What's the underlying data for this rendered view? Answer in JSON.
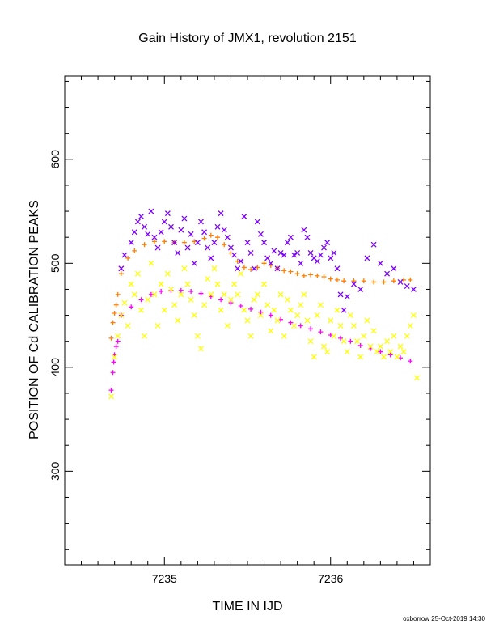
{
  "chart_data": {
    "type": "scatter",
    "title": "Gain History of JMX1, revolution 2151",
    "xlabel": "TIME IN IJD",
    "ylabel": "POSITION OF Cd CALIBRATION PEAKS",
    "xlim": [
      7234.4,
      7236.6
    ],
    "ylim": [
      210,
      680
    ],
    "x_ticks": [
      7235,
      7236
    ],
    "y_ticks": [
      300,
      400,
      500,
      600
    ],
    "x_tick_labels": [
      "7235",
      "7236"
    ],
    "y_tick_labels": [
      "300",
      "400",
      "500",
      "600"
    ],
    "grid": false,
    "legend": "none",
    "footer": "oxborrow 25-Oct-2019 14:30",
    "series": [
      {
        "marker": "+",
        "color": "#ff00ff",
        "x": [
          7234.68,
          7234.69,
          7234.695,
          7234.7,
          7234.71,
          7234.72,
          7234.74,
          7234.8,
          7234.86,
          7234.92,
          7234.98,
          7235.04,
          7235.1,
          7235.16,
          7235.22,
          7235.28,
          7235.34,
          7235.4,
          7235.46,
          7235.52,
          7235.58,
          7235.64,
          7235.7,
          7235.76,
          7235.82,
          7235.88,
          7235.94,
          7236.0,
          7236.06,
          7236.12,
          7236.18,
          7236.24,
          7236.3,
          7236.36,
          7236.42,
          7236.48
        ],
        "y": [
          378,
          395,
          405,
          412,
          420,
          425,
          450,
          458,
          465,
          470,
          473,
          474,
          474,
          473,
          471,
          468,
          465,
          462,
          459,
          456,
          453,
          450,
          446,
          443,
          440,
          437,
          434,
          431,
          428,
          425,
          421,
          418,
          415,
          412,
          409,
          406
        ]
      },
      {
        "marker": "+",
        "color": "#ff7f00",
        "x": [
          7234.68,
          7234.69,
          7234.7,
          7234.71,
          7234.72,
          7234.74,
          7234.78,
          7234.82,
          7234.88,
          7234.94,
          7235.0,
          7235.06,
          7235.12,
          7235.18,
          7235.24,
          7235.28,
          7235.32,
          7235.36,
          7235.4,
          7235.44,
          7235.48,
          7235.52,
          7235.56,
          7235.6,
          7235.64,
          7235.68,
          7235.72,
          7235.76,
          7235.8,
          7235.84,
          7235.88,
          7235.92,
          7235.96,
          7236.0,
          7236.04,
          7236.08,
          7236.14,
          7236.2,
          7236.26,
          7236.32,
          7236.38,
          7236.44,
          7236.48
        ],
        "y": [
          428,
          443,
          452,
          460,
          470,
          490,
          505,
          512,
          518,
          521,
          521,
          520,
          520,
          521,
          524,
          527,
          525,
          518,
          510,
          502,
          496,
          494,
          496,
          500,
          498,
          495,
          493,
          492,
          490,
          488,
          489,
          488,
          487,
          485,
          484,
          483,
          483,
          483,
          482,
          482,
          483,
          484,
          484
        ]
      },
      {
        "marker": "x",
        "color": "#7f00ff",
        "x": [
          7234.74,
          7234.76,
          7234.8,
          7234.82,
          7234.84,
          7234.86,
          7234.88,
          7234.9,
          7234.92,
          7234.94,
          7234.96,
          7234.98,
          7235.0,
          7235.02,
          7235.04,
          7235.06,
          7235.08,
          7235.1,
          7235.12,
          7235.14,
          7235.16,
          7235.18,
          7235.2,
          7235.22,
          7235.24,
          7235.26,
          7235.28,
          7235.3,
          7235.32,
          7235.34,
          7235.36,
          7235.38,
          7235.4,
          7235.42,
          7235.44,
          7235.46,
          7235.48,
          7235.5,
          7235.52,
          7235.54,
          7235.56,
          7235.58,
          7235.6,
          7235.62,
          7235.64,
          7235.66,
          7235.68,
          7235.7,
          7235.72,
          7235.74,
          7235.76,
          7235.78,
          7235.8,
          7235.82,
          7235.84,
          7235.86,
          7235.88,
          7235.9,
          7235.92,
          7235.94,
          7235.96,
          7235.98,
          7236.0,
          7236.02,
          7236.04,
          7236.06,
          7236.08,
          7236.1,
          7236.14,
          7236.18,
          7236.22,
          7236.26,
          7236.3,
          7236.34,
          7236.38,
          7236.42,
          7236.46,
          7236.5
        ],
        "y": [
          495,
          508,
          520,
          530,
          540,
          545,
          535,
          528,
          550,
          525,
          515,
          530,
          540,
          548,
          535,
          520,
          510,
          532,
          543,
          515,
          528,
          500,
          520,
          540,
          530,
          515,
          505,
          520,
          535,
          548,
          532,
          525,
          515,
          508,
          495,
          502,
          545,
          520,
          510,
          495,
          540,
          528,
          520,
          505,
          500,
          512,
          495,
          510,
          508,
          520,
          525,
          508,
          510,
          500,
          532,
          525,
          510,
          505,
          502,
          508,
          515,
          520,
          505,
          510,
          495,
          470,
          455,
          468,
          480,
          475,
          505,
          518,
          500,
          490,
          495,
          482,
          478,
          475
        ]
      },
      {
        "marker": "x",
        "color": "#ffff00",
        "x": [
          7234.68,
          7234.7,
          7234.72,
          7234.74,
          7234.76,
          7234.78,
          7234.8,
          7234.82,
          7234.84,
          7234.86,
          7234.88,
          7234.9,
          7234.92,
          7234.94,
          7234.96,
          7234.98,
          7235.0,
          7235.02,
          7235.04,
          7235.06,
          7235.08,
          7235.1,
          7235.12,
          7235.14,
          7235.16,
          7235.18,
          7235.2,
          7235.22,
          7235.24,
          7235.26,
          7235.28,
          7235.3,
          7235.32,
          7235.34,
          7235.36,
          7235.38,
          7235.4,
          7235.42,
          7235.44,
          7235.46,
          7235.48,
          7235.5,
          7235.52,
          7235.54,
          7235.56,
          7235.58,
          7235.6,
          7235.62,
          7235.64,
          7235.66,
          7235.68,
          7235.7,
          7235.72,
          7235.74,
          7235.76,
          7235.78,
          7235.8,
          7235.82,
          7235.84,
          7235.86,
          7235.88,
          7235.9,
          7235.92,
          7235.94,
          7235.96,
          7235.98,
          7236.0,
          7236.02,
          7236.04,
          7236.06,
          7236.08,
          7236.1,
          7236.12,
          7236.14,
          7236.16,
          7236.18,
          7236.2,
          7236.22,
          7236.24,
          7236.26,
          7236.28,
          7236.3,
          7236.32,
          7236.34,
          7236.36,
          7236.38,
          7236.4,
          7236.42,
          7236.44,
          7236.46,
          7236.48,
          7236.5,
          7236.52
        ],
        "y": [
          372,
          410,
          430,
          450,
          462,
          440,
          480,
          470,
          490,
          455,
          430,
          465,
          500,
          470,
          440,
          480,
          455,
          490,
          475,
          460,
          445,
          470,
          495,
          480,
          465,
          450,
          430,
          418,
          460,
          485,
          470,
          495,
          480,
          455,
          470,
          440,
          465,
          480,
          470,
          490,
          455,
          445,
          430,
          465,
          470,
          450,
          480,
          460,
          435,
          455,
          445,
          470,
          430,
          465,
          455,
          440,
          450,
          460,
          470,
          445,
          425,
          410,
          450,
          460,
          420,
          415,
          445,
          430,
          455,
          440,
          425,
          415,
          450,
          440,
          425,
          410,
          430,
          445,
          420,
          435,
          415,
          420,
          410,
          425,
          415,
          430,
          410,
          420,
          415,
          430,
          440,
          450,
          390
        ]
      }
    ]
  }
}
